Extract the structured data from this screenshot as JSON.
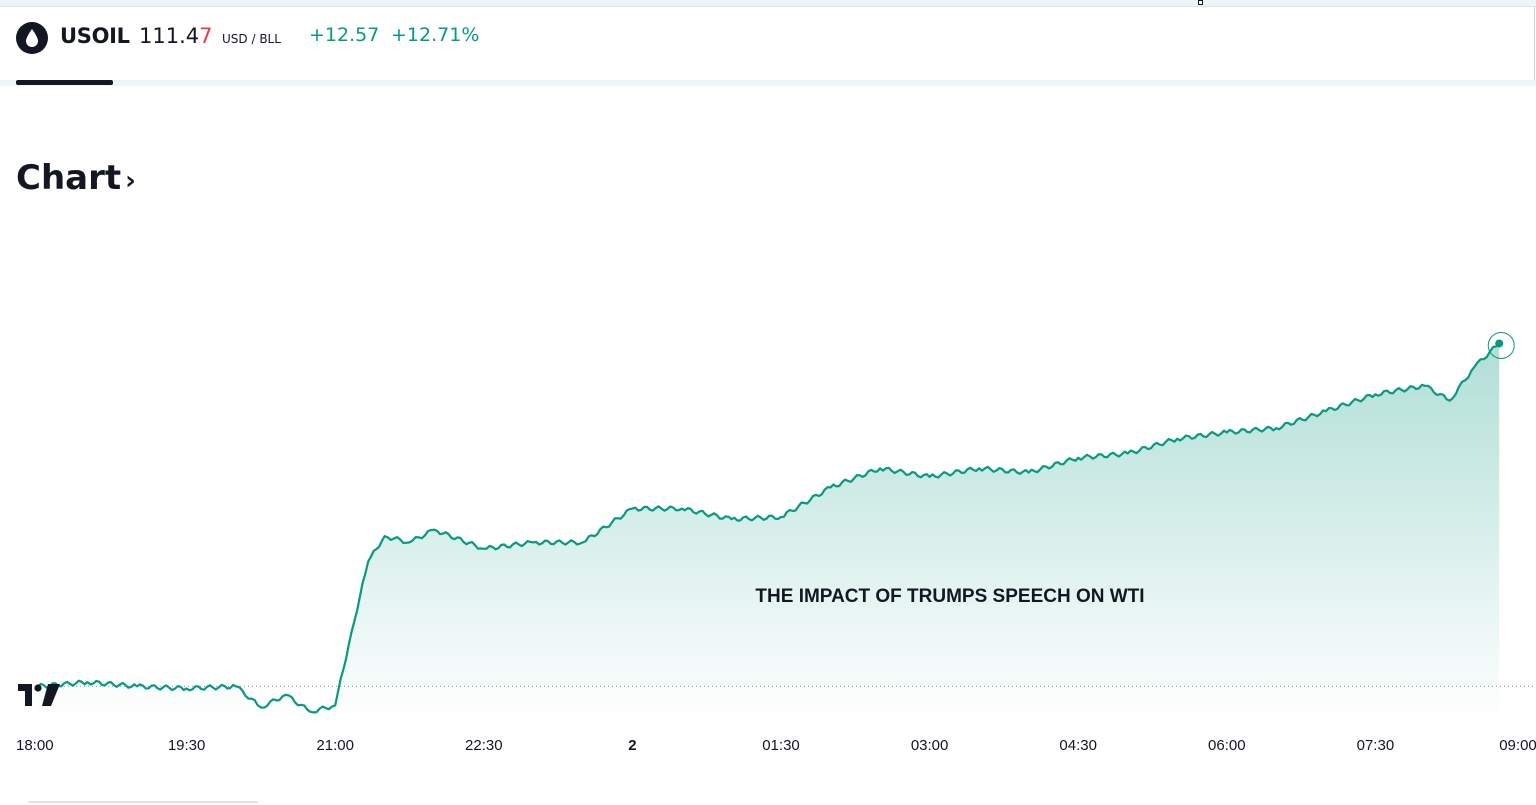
{
  "header": {
    "symbol": "USOIL",
    "price_main": "111.4",
    "price_last_digit": "7",
    "unit": "USD / BLL",
    "change": "+12.57",
    "change_percent": "+12.71%"
  },
  "section": {
    "title": "Chart",
    "chevron": "›"
  },
  "colors": {
    "line": "#089981",
    "fill_top": "#bde7dd",
    "up": "#089981",
    "down": "#f23645"
  },
  "icons": {
    "logo": "oil-drop-icon",
    "watermark": "tradingview-logo-icon"
  },
  "chart_data": {
    "type": "area",
    "annotation": "THE IMPACT OF TRUMPS SPEECH ON WTI",
    "x_ticks": [
      "18:00",
      "19:30",
      "21:00",
      "22:30",
      "2",
      "01:30",
      "03:00",
      "04:30",
      "06:00",
      "07:30",
      "09:00"
    ],
    "baseline": 98.9,
    "ylim": [
      97.5,
      115.5
    ],
    "series": [
      {
        "x": [
          "18:00",
          "18:30",
          "19:00",
          "19:30",
          "20:00",
          "20:15",
          "20:30",
          "20:45",
          "21:00",
          "21:10",
          "21:20",
          "21:30",
          "21:45",
          "22:00",
          "22:30",
          "23:00",
          "23:30",
          "00:00",
          "00:30",
          "01:00",
          "01:30",
          "02:00",
          "02:30",
          "03:00",
          "03:30",
          "04:00",
          "04:30",
          "05:00",
          "05:30",
          "06:00",
          "06:30",
          "07:00",
          "07:30",
          "08:00",
          "08:15",
          "08:30",
          "08:45"
        ],
        "y": [
          98.9,
          99.1,
          98.9,
          98.8,
          98.9,
          97.9,
          98.5,
          97.7,
          98.0,
          101.5,
          104.8,
          106.0,
          105.7,
          106.3,
          105.4,
          105.7,
          105.7,
          107.3,
          107.3,
          106.8,
          106.9,
          108.3,
          109.2,
          108.8,
          109.2,
          109.0,
          109.7,
          109.9,
          110.6,
          110.9,
          111.1,
          111.9,
          112.7,
          113.1,
          112.4,
          114.0,
          115.1
        ]
      }
    ]
  }
}
